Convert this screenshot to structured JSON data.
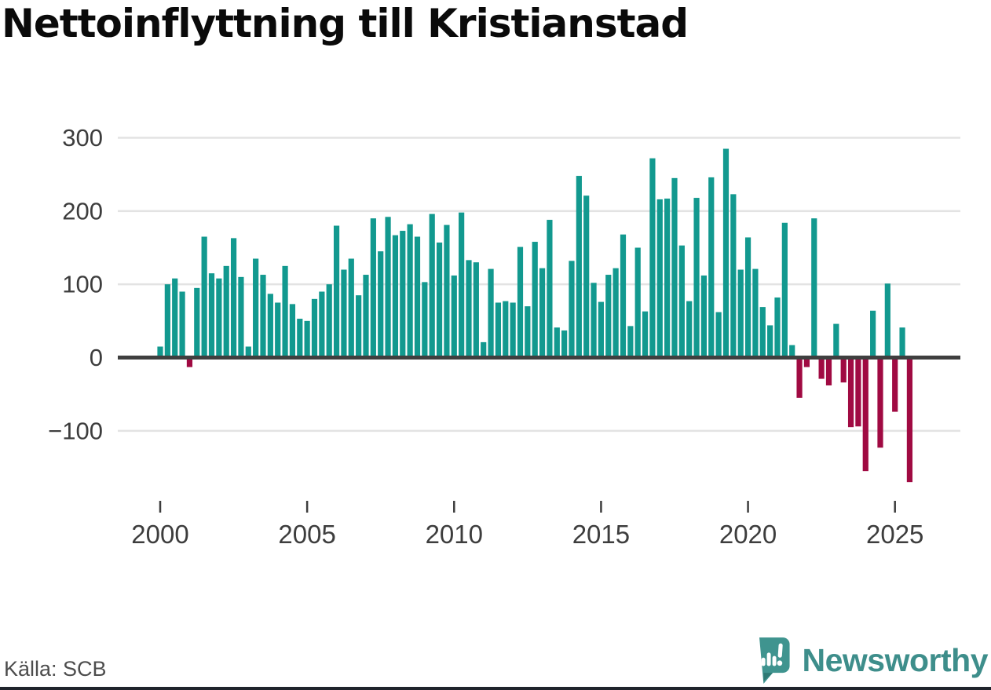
{
  "title": "Nettoinflyttning till Kristianstad",
  "source": "Källa: SCB",
  "brand": {
    "name": "Newsworthy",
    "color": "#3e8e8b"
  },
  "colors": {
    "positive_bar": "#12998f",
    "negative_bar": "#a00a42",
    "gridline": "#e3e3e3",
    "zero_line": "#3f3f3f",
    "axis_text": "#3d3d3d",
    "title_text": "#0a0a0a",
    "source_text": "#4d4d4d",
    "bottom_strip": "#20242c"
  },
  "chart_data": {
    "type": "bar",
    "title": "Nettoinflyttning till Kristianstad",
    "xlabel": "",
    "ylabel": "",
    "grid": "horizontal",
    "legend": "none",
    "ylim": [
      -185,
      315
    ],
    "frequency": "quarterly",
    "start_year": 2000,
    "start_quarter": 1,
    "y_ticks": [
      {
        "v": 300,
        "label": "300"
      },
      {
        "v": 200,
        "label": "200"
      },
      {
        "v": 100,
        "label": "100"
      },
      {
        "v": 0,
        "label": "0"
      },
      {
        "v": -100,
        "label": "−100"
      }
    ],
    "x_ticks": [
      {
        "index": 0,
        "label": "2000"
      },
      {
        "index": 20,
        "label": "2005"
      },
      {
        "index": 40,
        "label": "2010"
      },
      {
        "index": 60,
        "label": "2015"
      },
      {
        "index": 80,
        "label": "2020"
      },
      {
        "index": 100,
        "label": "2025"
      }
    ],
    "values": [
      15,
      100,
      108,
      90,
      -13,
      95,
      165,
      115,
      108,
      125,
      163,
      110,
      15,
      135,
      113,
      87,
      75,
      125,
      73,
      53,
      50,
      80,
      90,
      100,
      180,
      120,
      135,
      85,
      113,
      190,
      145,
      192,
      167,
      173,
      182,
      165,
      103,
      196,
      157,
      181,
      112,
      198,
      133,
      130,
      21,
      121,
      75,
      77,
      75,
      151,
      70,
      158,
      122,
      188,
      41,
      37,
      132,
      248,
      221,
      102,
      76,
      113,
      122,
      168,
      43,
      150,
      63,
      272,
      216,
      217,
      245,
      153,
      77,
      218,
      112,
      246,
      62,
      285,
      223,
      120,
      164,
      121,
      69,
      44,
      82,
      184,
      17,
      -55,
      -13,
      190,
      -29,
      -38,
      46,
      -34,
      -95,
      -94,
      -155,
      64,
      -123,
      101,
      -74,
      41,
      -170
    ]
  }
}
